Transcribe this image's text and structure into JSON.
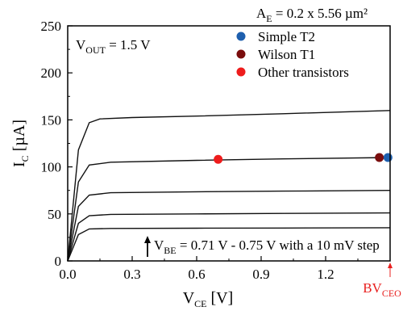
{
  "chart_data": {
    "type": "line",
    "header_note": {
      "main": "A",
      "sub": "E",
      "rest": " = 0.2 x 5.56 µm²"
    },
    "vout_note": {
      "main": "V",
      "sub": "OUT",
      "rest": " = 1.5 V"
    },
    "vbe_note": {
      "main": "V",
      "sub": "BE",
      "rest": " = 0.71 V - 0.75 V with a 10 mV step"
    },
    "xlabel": {
      "main": "V",
      "sub": "CE",
      "rest": " [V]"
    },
    "ylabel": {
      "main": "I",
      "sub": "C",
      "rest": " [µA]"
    },
    "bv_label": {
      "main": "BV",
      "sub": "CEO"
    },
    "bv_x": 1.5,
    "xlim": [
      0.0,
      1.5
    ],
    "ylim": [
      0,
      250
    ],
    "x_ticks": [
      0.0,
      0.3,
      0.6,
      0.9,
      1.2
    ],
    "x_tick_labels": [
      "0.0",
      "0.3",
      "0.6",
      "0.9",
      "1.2"
    ],
    "y_ticks": [
      0,
      50,
      100,
      150,
      200,
      250
    ],
    "y_tick_labels": [
      "0",
      "50",
      "100",
      "150",
      "200",
      "250"
    ],
    "grid": false,
    "legend_position": "top-right",
    "curves": [
      {
        "points": [
          [
            0.0,
            0
          ],
          [
            0.05,
            28
          ],
          [
            0.1,
            34
          ],
          [
            0.2,
            34.5
          ],
          [
            0.6,
            34.8
          ],
          [
            1.0,
            35
          ],
          [
            1.5,
            35.3
          ]
        ]
      },
      {
        "points": [
          [
            0.0,
            0
          ],
          [
            0.05,
            40
          ],
          [
            0.1,
            48
          ],
          [
            0.2,
            49.5
          ],
          [
            0.6,
            50
          ],
          [
            1.0,
            50.5
          ],
          [
            1.5,
            51
          ]
        ]
      },
      {
        "points": [
          [
            0.0,
            0
          ],
          [
            0.05,
            58
          ],
          [
            0.1,
            70
          ],
          [
            0.2,
            72.5
          ],
          [
            0.6,
            73.5
          ],
          [
            1.0,
            74.2
          ],
          [
            1.5,
            75
          ]
        ]
      },
      {
        "points": [
          [
            0.0,
            0
          ],
          [
            0.05,
            84
          ],
          [
            0.1,
            102
          ],
          [
            0.2,
            105
          ],
          [
            0.6,
            107
          ],
          [
            1.0,
            108.5
          ],
          [
            1.5,
            110
          ]
        ]
      },
      {
        "points": [
          [
            0.0,
            0
          ],
          [
            0.05,
            118
          ],
          [
            0.1,
            147
          ],
          [
            0.15,
            151
          ],
          [
            0.3,
            152.5
          ],
          [
            0.6,
            154
          ],
          [
            1.0,
            156.5
          ],
          [
            1.5,
            160
          ]
        ]
      }
    ],
    "markers": [
      {
        "name": "Other transistors",
        "color": "#ee1c1c",
        "x": 0.7,
        "y": 108
      },
      {
        "name": "Wilson T1",
        "color": "#7a0d0d",
        "x": 1.45,
        "y": 110
      },
      {
        "name": "Simple T2",
        "color": "#1e5fae",
        "x": 1.49,
        "y": 110
      }
    ],
    "legend": [
      {
        "name": "Simple T2",
        "color": "#1e5fae"
      },
      {
        "name": "Wilson T1",
        "color": "#7a0d0d"
      },
      {
        "name": "Other transistors",
        "color": "#ee1c1c"
      }
    ]
  }
}
